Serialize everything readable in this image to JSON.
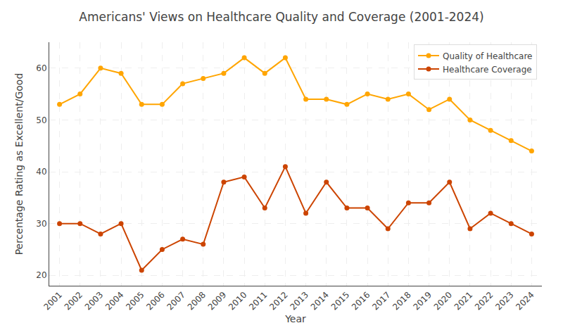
{
  "chart_data": {
    "type": "line",
    "title": "Americans' Views on Healthcare Quality and Coverage (2001-2024)",
    "xlabel": "Year",
    "ylabel": "Percentage Rating as Excellent/Good",
    "x": [
      2001,
      2002,
      2003,
      2004,
      2005,
      2006,
      2007,
      2008,
      2009,
      2010,
      2011,
      2012,
      2013,
      2014,
      2015,
      2016,
      2017,
      2018,
      2019,
      2020,
      2021,
      2022,
      2023,
      2024
    ],
    "series": [
      {
        "name": "Quality of Healthcare",
        "color": "#FFA500",
        "marker": "circle",
        "values": [
          53,
          55,
          60,
          59,
          53,
          53,
          57,
          58,
          59,
          62,
          59,
          62,
          54,
          54,
          53,
          55,
          54,
          55,
          52,
          54,
          50,
          48,
          46,
          44
        ]
      },
      {
        "name": "Healthcare Coverage",
        "color": "#CC4400",
        "marker": "circle",
        "values": [
          30,
          30,
          28,
          30,
          21,
          25,
          27,
          26,
          38,
          39,
          33,
          41,
          32,
          38,
          33,
          33,
          29,
          34,
          34,
          38,
          29,
          32,
          30,
          28
        ]
      }
    ],
    "xlim": [
      2000.5,
      2024.5
    ],
    "xticks": [
      2001,
      2002,
      2003,
      2004,
      2005,
      2006,
      2007,
      2008,
      2009,
      2010,
      2011,
      2012,
      2013,
      2014,
      2015,
      2016,
      2017,
      2018,
      2019,
      2020,
      2021,
      2022,
      2023,
      2024
    ],
    "ylim": [
      18,
      65
    ],
    "yticks": [
      20,
      30,
      40,
      50,
      60
    ],
    "grid": true,
    "legend": "upper right"
  }
}
